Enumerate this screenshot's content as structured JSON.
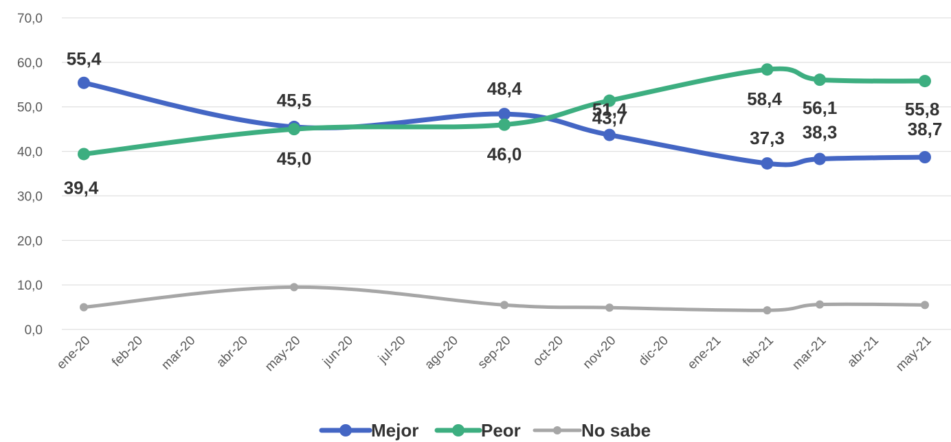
{
  "chart_data": {
    "type": "line",
    "title": "",
    "xlabel": "",
    "ylabel": "",
    "categories": [
      "ene-20",
      "feb-20",
      "mar-20",
      "abr-20",
      "may-20",
      "jun-20",
      "jul-20",
      "ago-20",
      "sep-20",
      "oct-20",
      "nov-20",
      "dic-20",
      "ene-21",
      "feb-21",
      "mar-21",
      "abr-21",
      "may-21"
    ],
    "y_ticks": [
      "0,0",
      "10,0",
      "20,0",
      "30,0",
      "40,0",
      "50,0",
      "60,0",
      "70,0"
    ],
    "ylim": [
      0,
      70
    ],
    "grid": true,
    "legend_position": "bottom",
    "series": [
      {
        "name": "Mejor",
        "color": "#4466c4",
        "points": [
          {
            "category": "ene-20",
            "value": 55.4,
            "label": "55,4"
          },
          {
            "category": "may-20",
            "value": 45.5,
            "label": "45,5"
          },
          {
            "category": "sep-20",
            "value": 48.4,
            "label": "48,4"
          },
          {
            "category": "nov-20",
            "value": 43.7,
            "label": "43,7"
          },
          {
            "category": "feb-21",
            "value": 37.3,
            "label": "37,3"
          },
          {
            "category": "mar-21",
            "value": 38.3,
            "label": "38,3"
          },
          {
            "category": "may-21",
            "value": 38.7,
            "label": "38,7"
          }
        ]
      },
      {
        "name": "Peor",
        "color": "#3dae80",
        "points": [
          {
            "category": "ene-20",
            "value": 39.4,
            "label": "39,4"
          },
          {
            "category": "may-20",
            "value": 45.0,
            "label": "45,0"
          },
          {
            "category": "sep-20",
            "value": 46.0,
            "label": "46,0"
          },
          {
            "category": "nov-20",
            "value": 51.4,
            "label": "51,4"
          },
          {
            "category": "feb-21",
            "value": 58.4,
            "label": "58,4"
          },
          {
            "category": "mar-21",
            "value": 56.1,
            "label": "56,1"
          },
          {
            "category": "may-21",
            "value": 55.8,
            "label": "55,8"
          }
        ]
      },
      {
        "name": "No sabe",
        "color": "#a6a6a6",
        "points": [
          {
            "category": "ene-20",
            "value": 5.0
          },
          {
            "category": "may-20",
            "value": 9.5
          },
          {
            "category": "sep-20",
            "value": 5.5
          },
          {
            "category": "nov-20",
            "value": 4.9
          },
          {
            "category": "feb-21",
            "value": 4.3
          },
          {
            "category": "mar-21",
            "value": 5.6
          },
          {
            "category": "may-21",
            "value": 5.5
          }
        ]
      }
    ]
  }
}
